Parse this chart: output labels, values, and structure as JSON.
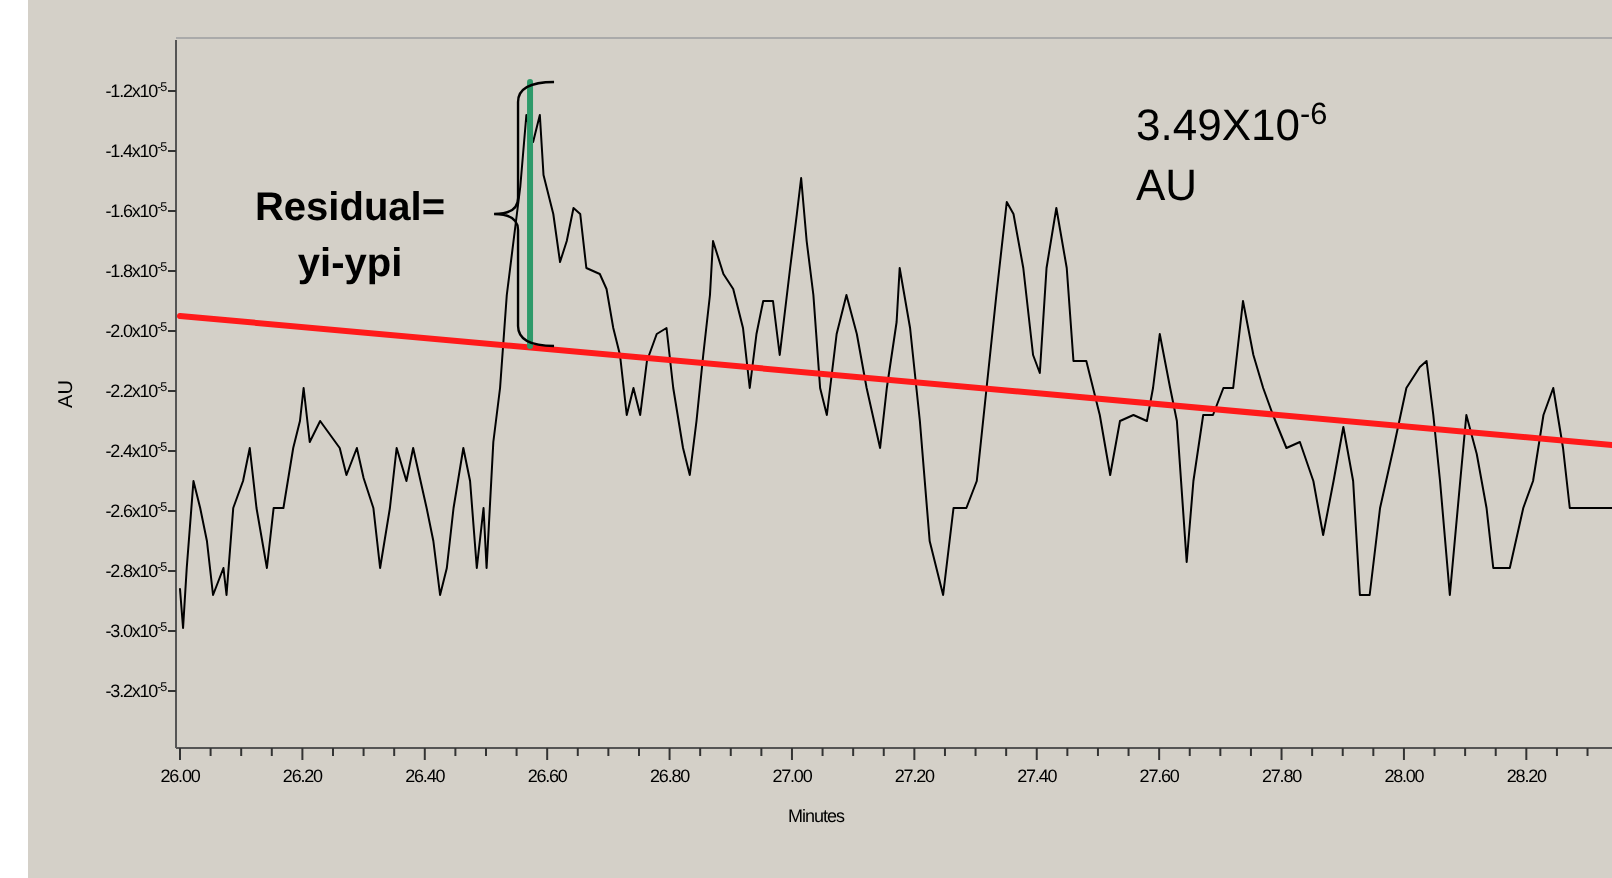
{
  "chart_data": {
    "type": "line",
    "xlabel": "Minutes",
    "ylabel": "AU",
    "xlim": [
      26.0,
      28.34
    ],
    "ylim": [
      -3.39e-05,
      -1.03e-05
    ],
    "xticks": [
      {
        "value": 26.0,
        "label": "26.00"
      },
      {
        "value": 26.05,
        "label": null
      },
      {
        "value": 26.1,
        "label": null
      },
      {
        "value": 26.15,
        "label": null
      },
      {
        "value": 26.2,
        "label": "26.20"
      },
      {
        "value": 26.25,
        "label": null
      },
      {
        "value": 26.3,
        "label": null
      },
      {
        "value": 26.35,
        "label": null
      },
      {
        "value": 26.4,
        "label": "26.40"
      },
      {
        "value": 26.45,
        "label": null
      },
      {
        "value": 26.5,
        "label": null
      },
      {
        "value": 26.55,
        "label": null
      },
      {
        "value": 26.6,
        "label": "26.60"
      },
      {
        "value": 26.65,
        "label": null
      },
      {
        "value": 26.7,
        "label": null
      },
      {
        "value": 26.75,
        "label": null
      },
      {
        "value": 26.8,
        "label": "26.80"
      },
      {
        "value": 26.85,
        "label": null
      },
      {
        "value": 26.9,
        "label": null
      },
      {
        "value": 26.95,
        "label": null
      },
      {
        "value": 27.0,
        "label": "27.00"
      },
      {
        "value": 27.05,
        "label": null
      },
      {
        "value": 27.1,
        "label": null
      },
      {
        "value": 27.15,
        "label": null
      },
      {
        "value": 27.2,
        "label": "27.20"
      },
      {
        "value": 27.25,
        "label": null
      },
      {
        "value": 27.3,
        "label": null
      },
      {
        "value": 27.35,
        "label": null
      },
      {
        "value": 27.4,
        "label": "27.40"
      },
      {
        "value": 27.45,
        "label": null
      },
      {
        "value": 27.5,
        "label": null
      },
      {
        "value": 27.55,
        "label": null
      },
      {
        "value": 27.6,
        "label": "27.60"
      },
      {
        "value": 27.65,
        "label": null
      },
      {
        "value": 27.7,
        "label": null
      },
      {
        "value": 27.75,
        "label": null
      },
      {
        "value": 27.8,
        "label": "27.80"
      },
      {
        "value": 27.85,
        "label": null
      },
      {
        "value": 27.9,
        "label": null
      },
      {
        "value": 27.95,
        "label": null
      },
      {
        "value": 28.0,
        "label": "28.00"
      },
      {
        "value": 28.05,
        "label": null
      },
      {
        "value": 28.1,
        "label": null
      },
      {
        "value": 28.15,
        "label": null
      },
      {
        "value": 28.2,
        "label": "28.20"
      },
      {
        "value": 28.25,
        "label": null
      },
      {
        "value": 28.3,
        "label": null
      }
    ],
    "yticks": [
      {
        "value": -1.2e-05,
        "label": "-1.2x10$^{-5}$"
      },
      {
        "value": -1.4e-05,
        "label": "-1.4x10$^{-5}$"
      },
      {
        "value": -1.6e-05,
        "label": "-1.6x10$^{-5}$"
      },
      {
        "value": -1.8e-05,
        "label": "-1.8x10$^{-5}$"
      },
      {
        "value": -2e-05,
        "label": "-2.0x10$^{-5}$"
      },
      {
        "value": -2.2e-05,
        "label": "-2.2x10$^{-5}$"
      },
      {
        "value": -2.4e-05,
        "label": "-2.4x10$^{-5}$"
      },
      {
        "value": -2.6e-05,
        "label": "-2.6x10$^{-5}$"
      },
      {
        "value": -2.8e-05,
        "label": "-2.8x10$^{-5}$"
      },
      {
        "value": -3e-05,
        "label": "-3.0x10$^{-5}$"
      },
      {
        "value": -3.2e-05,
        "label": "-3.2x10$^{-5}$"
      }
    ],
    "grid": false,
    "series": [
      {
        "color": "#000000",
        "x": [
          26.0,
          26.005,
          26.011,
          26.022,
          26.033,
          26.044,
          26.054,
          26.071,
          26.076,
          26.087,
          26.103,
          26.114,
          26.125,
          26.142,
          26.153,
          26.169,
          26.185,
          26.196,
          26.202,
          26.212,
          26.229,
          26.261,
          26.272,
          26.289,
          26.3,
          26.316,
          26.327,
          26.343,
          26.354,
          26.37,
          26.381,
          26.403,
          26.414,
          26.425,
          26.436,
          26.447,
          26.463,
          26.474,
          26.485,
          26.496,
          26.501,
          26.512,
          26.523,
          26.534,
          26.545,
          26.556,
          26.566,
          26.577,
          26.588,
          26.594,
          26.61,
          26.621,
          26.632,
          26.643,
          26.654,
          26.664,
          26.686,
          26.697,
          26.708,
          26.719,
          26.73,
          26.741,
          26.752,
          26.763,
          26.779,
          26.795,
          26.806,
          26.822,
          26.833,
          26.844,
          26.855,
          26.866,
          26.871,
          26.888,
          26.904,
          26.92,
          26.931,
          26.942,
          26.953,
          26.969,
          26.98,
          26.997,
          27.008,
          27.015,
          27.024,
          27.035,
          27.046,
          27.057,
          27.073,
          27.089,
          27.106,
          27.122,
          27.144,
          27.155,
          27.171,
          27.176,
          27.193,
          27.209,
          27.225,
          27.247,
          27.264,
          27.285,
          27.302,
          27.318,
          27.334,
          27.351,
          27.362,
          27.378,
          27.394,
          27.405,
          27.416,
          27.432,
          27.449,
          27.46,
          27.481,
          27.503,
          27.52,
          27.536,
          27.558,
          27.58,
          27.59,
          27.601,
          27.618,
          27.629,
          27.645,
          27.656,
          27.672,
          27.688,
          27.705,
          27.721,
          27.737,
          27.754,
          27.77,
          27.786,
          27.808,
          27.83,
          27.852,
          27.868,
          27.885,
          27.901,
          27.917,
          27.928,
          27.944,
          27.961,
          27.983,
          28.004,
          28.026,
          28.037,
          28.048,
          28.059,
          28.075,
          28.092,
          28.102,
          28.119,
          28.135,
          28.146,
          28.173,
          28.195,
          28.211,
          28.228,
          28.244,
          28.26,
          28.271,
          28.298,
          28.32,
          28.34
        ],
        "values": [
          -2.86e-05,
          -2.99e-05,
          -2.79e-05,
          -2.5e-05,
          -2.59e-05,
          -2.7e-05,
          -2.88e-05,
          -2.79e-05,
          -2.88e-05,
          -2.59e-05,
          -2.5e-05,
          -2.39e-05,
          -2.59e-05,
          -2.79e-05,
          -2.59e-05,
          -2.59e-05,
          -2.39e-05,
          -2.3e-05,
          -2.19e-05,
          -2.37e-05,
          -2.3e-05,
          -2.39e-05,
          -2.48e-05,
          -2.39e-05,
          -2.49e-05,
          -2.59e-05,
          -2.79e-05,
          -2.59e-05,
          -2.39e-05,
          -2.5e-05,
          -2.39e-05,
          -2.59e-05,
          -2.7e-05,
          -2.88e-05,
          -2.79e-05,
          -2.59e-05,
          -2.39e-05,
          -2.5e-05,
          -2.79e-05,
          -2.59e-05,
          -2.79e-05,
          -2.37e-05,
          -2.19e-05,
          -1.88e-05,
          -1.7e-05,
          -1.52e-05,
          -1.28e-05,
          -1.37e-05,
          -1.28e-05,
          -1.48e-05,
          -1.61e-05,
          -1.77e-05,
          -1.7e-05,
          -1.59e-05,
          -1.61e-05,
          -1.79e-05,
          -1.81e-05,
          -1.86e-05,
          -1.99e-05,
          -2.08e-05,
          -2.28e-05,
          -2.19e-05,
          -2.28e-05,
          -2.1e-05,
          -2.01e-05,
          -1.99e-05,
          -2.19e-05,
          -2.39e-05,
          -2.48e-05,
          -2.3e-05,
          -2.08e-05,
          -1.88e-05,
          -1.7e-05,
          -1.81e-05,
          -1.86e-05,
          -1.99e-05,
          -2.19e-05,
          -2.01e-05,
          -1.9e-05,
          -1.9e-05,
          -2.08e-05,
          -1.79e-05,
          -1.61e-05,
          -1.49e-05,
          -1.7e-05,
          -1.88e-05,
          -2.19e-05,
          -2.28e-05,
          -2.01e-05,
          -1.88e-05,
          -2.01e-05,
          -2.19e-05,
          -2.39e-05,
          -2.19e-05,
          -1.97e-05,
          -1.79e-05,
          -1.99e-05,
          -2.3e-05,
          -2.7e-05,
          -2.88e-05,
          -2.59e-05,
          -2.59e-05,
          -2.5e-05,
          -2.19e-05,
          -1.88e-05,
          -1.57e-05,
          -1.61e-05,
          -1.79e-05,
          -2.08e-05,
          -2.14e-05,
          -1.79e-05,
          -1.59e-05,
          -1.79e-05,
          -2.1e-05,
          -2.1e-05,
          -2.28e-05,
          -2.48e-05,
          -2.3e-05,
          -2.28e-05,
          -2.3e-05,
          -2.19e-05,
          -2.01e-05,
          -2.19e-05,
          -2.3e-05,
          -2.77e-05,
          -2.5e-05,
          -2.28e-05,
          -2.28e-05,
          -2.19e-05,
          -2.19e-05,
          -1.9e-05,
          -2.08e-05,
          -2.19e-05,
          -2.28e-05,
          -2.39e-05,
          -2.37e-05,
          -2.5e-05,
          -2.68e-05,
          -2.5e-05,
          -2.32e-05,
          -2.5e-05,
          -2.88e-05,
          -2.88e-05,
          -2.59e-05,
          -2.39e-05,
          -2.19e-05,
          -2.12e-05,
          -2.1e-05,
          -2.28e-05,
          -2.5e-05,
          -2.88e-05,
          -2.5e-05,
          -2.28e-05,
          -2.41e-05,
          -2.59e-05,
          -2.79e-05,
          -2.79e-05,
          -2.59e-05,
          -2.5e-05,
          -2.28e-05,
          -2.19e-05,
          -2.39e-05,
          -2.59e-05,
          -2.59e-05,
          -2.59e-05,
          -2.59e-05
        ]
      },
      {
        "color": "#ff1a1a",
        "x": [
          26.0,
          28.34
        ],
        "values": [
          -1.95e-05,
          -2.38e-05
        ]
      },
      {
        "color": "#2e9a6a",
        "x": [
          26.572,
          26.572
        ],
        "values": [
          -2.05e-05,
          -1.17e-05
        ]
      }
    ],
    "annotations": [
      "Residual=\nyi-ypi",
      "3.49X10$^{-6}$\nAU"
    ]
  }
}
